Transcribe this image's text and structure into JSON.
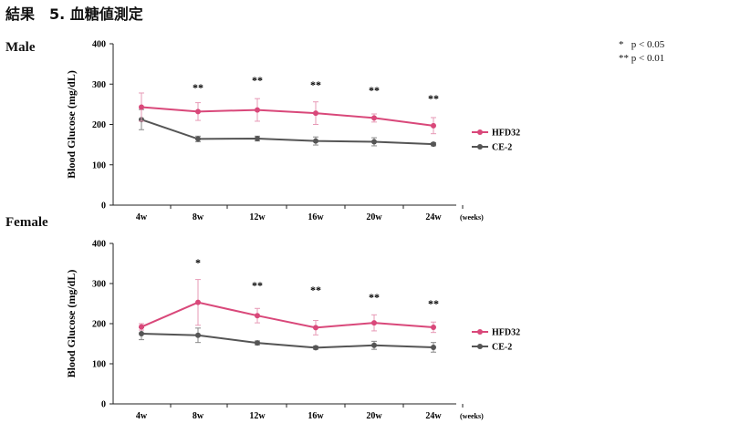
{
  "header": {
    "title": "結果　5. 血糖値測定"
  },
  "significance_legend": [
    {
      "symbol": "*",
      "text": "p < 0.05"
    },
    {
      "symbol": "**",
      "text": "p < 0.01"
    }
  ],
  "colors": {
    "hfd": "#d9487a",
    "hfd_err": "#e79ab6",
    "ce": "#555555",
    "ce_err": "#888888",
    "axis": "#222222"
  },
  "chart_data": [
    {
      "type": "line",
      "panel_label": "Male",
      "categories": [
        "4w",
        "8w",
        "12w",
        "16w",
        "20w",
        "24w"
      ],
      "x_unit": "(weeks)",
      "ylabel": "Blood Glucose  (mg/dL)",
      "ylim": [
        0,
        400
      ],
      "yticks": [
        0,
        100,
        200,
        300,
        400
      ],
      "significance": [
        "",
        "**",
        "**",
        "**",
        "**",
        "**"
      ],
      "legend_position": "right",
      "series": [
        {
          "name": "HFD32",
          "values": [
            243,
            232,
            236,
            228,
            216,
            197
          ],
          "errors": [
            35,
            22,
            28,
            28,
            10,
            20
          ]
        },
        {
          "name": "CE-2",
          "values": [
            212,
            164,
            165,
            159,
            157,
            151
          ],
          "errors": [
            25,
            7,
            6,
            10,
            10,
            4
          ]
        }
      ]
    },
    {
      "type": "line",
      "panel_label": "Female",
      "categories": [
        "4w",
        "8w",
        "12w",
        "16w",
        "20w",
        "24w"
      ],
      "x_unit": "(weeks)",
      "ylabel": "Blood Glucose  (mg/dL)",
      "ylim": [
        0,
        400
      ],
      "yticks": [
        0,
        100,
        200,
        300,
        400
      ],
      "significance": [
        "",
        "*",
        "**",
        "**",
        "**",
        "**"
      ],
      "legend_position": "right",
      "series": [
        {
          "name": "HFD32",
          "values": [
            192,
            253,
            220,
            190,
            202,
            191
          ],
          "errors": [
            8,
            57,
            18,
            18,
            20,
            13
          ]
        },
        {
          "name": "CE-2",
          "values": [
            175,
            171,
            152,
            140,
            146,
            141
          ],
          "errors": [
            15,
            18,
            5,
            4,
            10,
            12
          ]
        }
      ]
    }
  ]
}
